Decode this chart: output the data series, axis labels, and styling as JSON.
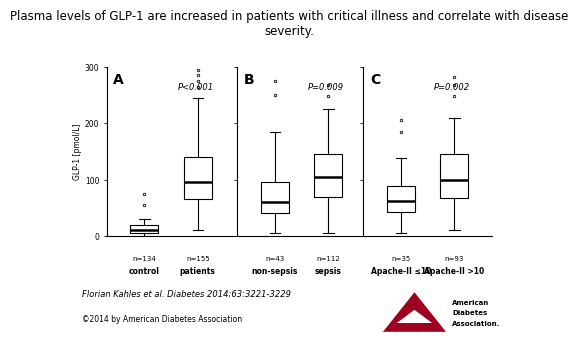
{
  "title": "Plasma levels of GLP-1 are increased in patients with critical illness and correlate with disease\nseverity.",
  "title_fontsize": 8.5,
  "ylabel": "GLP-1 [pmol/L]",
  "panels": [
    "A",
    "B",
    "C"
  ],
  "pvalues": [
    "P<0.001",
    "P=0.009",
    "P=0.002"
  ],
  "ylim": [
    0,
    300
  ],
  "yticks": [
    0,
    100,
    200,
    300
  ],
  "groups": [
    {
      "labels": [
        "control",
        "patients"
      ],
      "n_labels": [
        "n=134",
        "n=155"
      ],
      "box_stats": [
        {
          "q1": 5,
          "median": 10,
          "q3": 20,
          "whisker_low": 0,
          "whisker_high": 30,
          "outliers": [
            55,
            75
          ]
        },
        {
          "q1": 65,
          "median": 95,
          "q3": 140,
          "whisker_low": 10,
          "whisker_high": 245,
          "outliers": [
            265,
            275,
            285,
            295
          ]
        }
      ]
    },
    {
      "labels": [
        "non-sepsis",
        "sepsis"
      ],
      "n_labels": [
        "n=43",
        "n=112"
      ],
      "box_stats": [
        {
          "q1": 40,
          "median": 60,
          "q3": 95,
          "whisker_low": 5,
          "whisker_high": 185,
          "outliers": [
            250,
            275
          ]
        },
        {
          "q1": 70,
          "median": 105,
          "q3": 145,
          "whisker_low": 5,
          "whisker_high": 225,
          "outliers": [
            248,
            268
          ]
        }
      ]
    },
    {
      "labels": [
        "Apache-II ≤10",
        "Apache-II >10"
      ],
      "n_labels": [
        "n=35",
        "n=93"
      ],
      "box_stats": [
        {
          "q1": 42,
          "median": 62,
          "q3": 88,
          "whisker_low": 5,
          "whisker_high": 138,
          "outliers": [
            185,
            205
          ]
        },
        {
          "q1": 68,
          "median": 100,
          "q3": 145,
          "whisker_low": 10,
          "whisker_high": 210,
          "outliers": [
            248,
            268,
            282
          ]
        }
      ]
    }
  ],
  "footer_text": "Florian Kahles et al. Diabetes 2014;63:3221-3229",
  "copyright_text": "©2014 by American Diabetes Association",
  "footer_fontsize": 6,
  "background_color": "#ffffff"
}
